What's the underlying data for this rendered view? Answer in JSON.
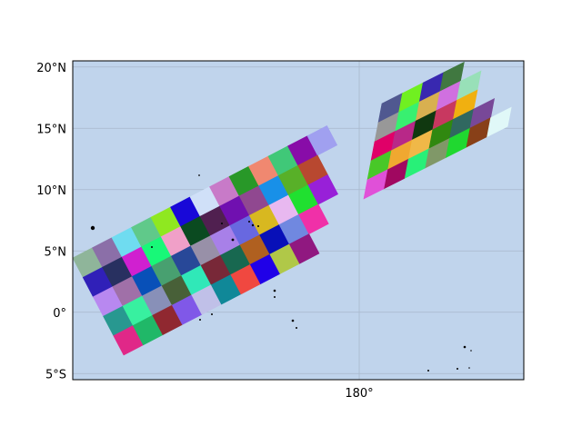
{
  "map": {
    "ocean_color": "#c0d4ec",
    "gridline_color": "#a8b8cc",
    "land_color": "#000000",
    "lat_ticks": [
      {
        "value": 20,
        "label": "20°N"
      },
      {
        "value": 15,
        "label": "15°N"
      },
      {
        "value": 10,
        "label": "10°N"
      },
      {
        "value": 5,
        "label": "5°N"
      },
      {
        "value": 0,
        "label": "0°"
      },
      {
        "value": -5,
        "label": "5°S"
      }
    ],
    "lon_ticks": [
      {
        "value": 180,
        "label": "180°"
      }
    ],
    "extent": {
      "lon_min": 156.5,
      "lon_max": 193.5,
      "lat_min": -5.5,
      "lat_max": 20.5
    }
  },
  "swath_west": {
    "rows": [
      [
        "#8fb59a",
        "#8b6fa8",
        "#6fdcf0",
        "#60c98a",
        "#8fe820",
        "#1808d8",
        "#d0e0f8",
        "#c87ac8",
        "#289828",
        "#f08870",
        "#40c878",
        "#880ca8",
        "#a0a0f0"
      ],
      [
        "#3020b8",
        "#283060",
        "#d020d0",
        "#18f878",
        "#f0a0c8",
        "#0a4a20",
        "#502050",
        "#7010b0",
        "#904890",
        "#1890e8",
        "#58b028",
        "#b84830"
      ],
      [
        "#b888f0",
        "#a070a8",
        "#0850b8",
        "#48a070",
        "#284898",
        "#9890a8",
        "#a880e8",
        "#6868e0",
        "#d8b820",
        "#e8b8f0",
        "#20e030",
        "#9820d8"
      ],
      [
        "#289890",
        "#38f0a0",
        "#8890b8",
        "#486038",
        "#30e8b8",
        "#782838",
        "#186850",
        "#b06020",
        "#0810b8",
        "#7088e0",
        "#f030a8"
      ],
      [
        "#e02888",
        "#20b868",
        "#902830",
        "#8058e8",
        "#c0c0e8",
        "#108898",
        "#f04840",
        "#2000e8",
        "#b0c848",
        "#901880"
      ]
    ]
  },
  "swath_east": {
    "rows": [
      [
        "#505890",
        "#70f020",
        "#3828b0",
        "#407840"
      ],
      [
        "#989898",
        "#38f070",
        "#d8b050",
        "#d070e0",
        "#98e0b8"
      ],
      [
        "#e00068",
        "#b82888",
        "#103810",
        "#c83860",
        "#f0b010"
      ],
      [
        "#48c828",
        "#f0a830",
        "#f0b848",
        "#308810",
        "#306860",
        "#784898"
      ],
      [
        "#e050d8",
        "#a00860",
        "#28f078",
        "#809868",
        "#20d830",
        "#884018",
        "#e0f8f8"
      ]
    ]
  }
}
